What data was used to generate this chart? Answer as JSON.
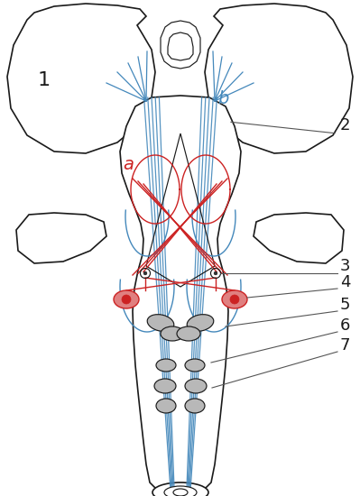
{
  "bg_color": "#ffffff",
  "line_color": "#1a1a1a",
  "red_color": "#cc2222",
  "blue_color": "#4488bb",
  "figsize": [
    3.99,
    5.5
  ],
  "dpi": 100
}
